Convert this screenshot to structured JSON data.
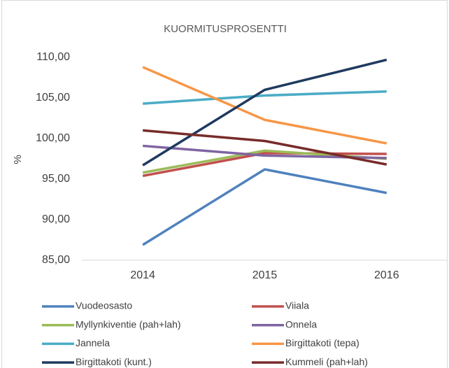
{
  "chart_data": {
    "type": "line",
    "title": "KUORMITUSPROSENTTI",
    "y_label": "%",
    "categories": [
      "2014",
      "2015",
      "2016"
    ],
    "series": [
      {
        "name": "Vuodeosasto",
        "color": "#4f81bd",
        "values": [
          86.9,
          96.2,
          93.3
        ]
      },
      {
        "name": "Viiala",
        "color": "#c0504d",
        "values": [
          95.4,
          98.2,
          98.1
        ]
      },
      {
        "name": "Myllynkiventie (pah+lah)",
        "color": "#9bbb59",
        "values": [
          95.8,
          98.5,
          97.5
        ]
      },
      {
        "name": "Onnela",
        "color": "#8064a2",
        "values": [
          99.1,
          97.9,
          97.6
        ]
      },
      {
        "name": "Jannela",
        "color": "#4bacc6",
        "values": [
          104.3,
          105.3,
          105.8
        ]
      },
      {
        "name": "Birgittakoti (tepa)",
        "color": "#f79646",
        "values": [
          108.8,
          102.3,
          99.4
        ]
      },
      {
        "name": "Birgittakoti (kunt.)",
        "color": "#1f3a5f",
        "values": [
          96.7,
          106.0,
          109.7
        ]
      },
      {
        "name": "Kummeli (pah+lah)",
        "color": "#772c2a",
        "values": [
          101.0,
          99.7,
          96.8
        ]
      }
    ],
    "ylim": [
      85,
      110
    ],
    "yticks": [
      {
        "value": 85,
        "label": "85,00"
      },
      {
        "value": 90,
        "label": "90,00"
      },
      {
        "value": 95,
        "label": "95,00"
      },
      {
        "value": 100,
        "label": "100,00"
      },
      {
        "value": 105,
        "label": "105,00"
      },
      {
        "value": 110,
        "label": "110,00"
      }
    ],
    "legend": "bottom"
  }
}
